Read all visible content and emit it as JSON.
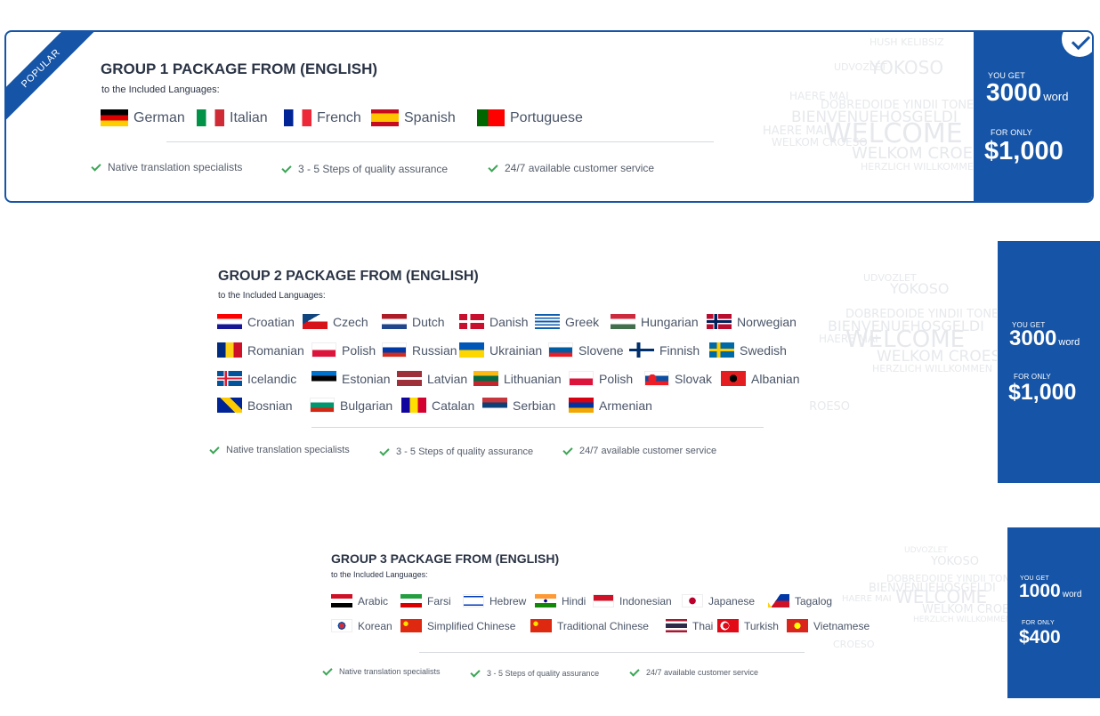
{
  "packages": [
    {
      "popular_label": "POPULAR",
      "title": "GROUP 1 PACKAGE FROM (ENGLISH)",
      "subtitle": "to the Included Languages:",
      "you_get_label": "YOU GET",
      "words": "3000",
      "words_unit": "word",
      "for_only_label": "FOR ONLY",
      "price": "$1,000",
      "languages": [
        "German",
        "Italian",
        "French",
        "Spanish",
        "Portuguese"
      ],
      "features": [
        "Native translation specialists",
        "3 - 5 Steps of quality assurance",
        "24/7 available customer service"
      ]
    },
    {
      "title": "GROUP 2 PACKAGE FROM (ENGLISH)",
      "subtitle": "to the Included Languages:",
      "you_get_label": "YOU GET",
      "words": "3000",
      "words_unit": "word",
      "for_only_label": "FOR ONLY",
      "price": "$1,000",
      "languages": [
        "Croatian",
        "Czech",
        "Dutch",
        "Danish",
        "Greek",
        "Hungarian",
        "Norwegian",
        "Romanian",
        "Polish",
        "Russian",
        "Ukrainian",
        "Slovene",
        "Finnish",
        "Swedish",
        "Icelandic",
        "Estonian",
        "Latvian",
        "Lithuanian",
        "Polish",
        "Slovak",
        "Albanian",
        "Bosnian",
        "Bulgarian",
        "Catalan",
        "Serbian",
        "Armenian"
      ],
      "features": [
        "Native translation specialists",
        "3 - 5 Steps of quality assurance",
        "24/7 available customer service"
      ]
    },
    {
      "title": "GROUP 3 PACKAGE FROM (ENGLISH)",
      "subtitle": "to the Included Languages:",
      "you_get_label": "YOU GET",
      "words": "1000",
      "words_unit": "word",
      "for_only_label": "FOR ONLY",
      "price": "$400",
      "languages": [
        "Arabic",
        "Farsi",
        "Hebrew",
        "Hindi",
        "Indonesian",
        "Japanese",
        "Tagalog",
        "Korean",
        "Simplified Chinese",
        "Traditional Chinese",
        "Thai",
        "Turkish",
        "Vietnamese"
      ],
      "features": [
        "Native translation specialists",
        "3 - 5 Steps of quality assurance",
        "24/7 available customer service"
      ]
    }
  ],
  "watermark_words": [
    "YOKOSO",
    "BIENVENUEHOSGELDI",
    "WELCOME",
    "WELKOM CROESO",
    "HERZLICH WILLKOMMEN",
    "DOBREDOIDE YINDII TONE",
    "HAERE MAI",
    "UDVOZLET",
    "CROESO",
    "HUSH KELIBSIZ"
  ],
  "colors": {
    "brand_blue": "#1554a6",
    "check_green": "#3aa655"
  }
}
